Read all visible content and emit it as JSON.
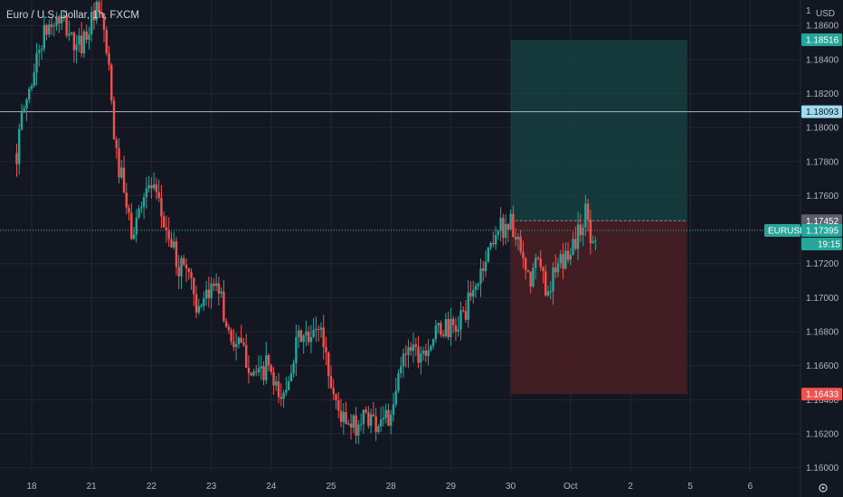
{
  "header": {
    "title": "Euro / U.S. Dollar, 1h, FXCM"
  },
  "colors": {
    "background": "#131722",
    "grid": "#232733",
    "up": "#26a69a",
    "down": "#ef5350",
    "profit_zone": "#16403e",
    "loss_zone": "#4a1f25",
    "axis_text": "#b2b5be"
  },
  "chart_data": {
    "type": "candlestick",
    "symbol": "EURUSD",
    "timeframe": "1h",
    "currency_label": "USD",
    "scale_label": "1",
    "y_ticks": [
      1.186,
      1.184,
      1.182,
      1.18,
      1.178,
      1.176,
      1.174,
      1.172,
      1.17,
      1.168,
      1.166,
      1.164,
      1.162,
      1.16
    ],
    "y_tick_labels": [
      "1.18600",
      "1.18400",
      "1.18200",
      "1.18000",
      "1.17800",
      "1.17600",
      "1.17400",
      "1.17200",
      "1.17000",
      "1.16800",
      "1.16600",
      "1.16400",
      "1.16200",
      "1.16000"
    ],
    "ylim": [
      1.1595,
      1.1875
    ],
    "x_ticks": [
      {
        "label": "18",
        "day": 0
      },
      {
        "label": "21",
        "day": 1
      },
      {
        "label": "22",
        "day": 2
      },
      {
        "label": "23",
        "day": 3
      },
      {
        "label": "24",
        "day": 4
      },
      {
        "label": "25",
        "day": 5
      },
      {
        "label": "28",
        "day": 6
      },
      {
        "label": "29",
        "day": 7
      },
      {
        "label": "30",
        "day": 8
      },
      {
        "label": "Oct",
        "day": 9
      },
      {
        "label": "2",
        "day": 10
      },
      {
        "label": "5",
        "day": 11
      },
      {
        "label": "6",
        "day": 12
      }
    ],
    "price_path": [
      [
        -0.25,
        1.1785
      ],
      [
        -0.15,
        1.1808
      ],
      [
        0.0,
        1.1828
      ],
      [
        0.15,
        1.185
      ],
      [
        0.3,
        1.186
      ],
      [
        0.45,
        1.1863
      ],
      [
        0.6,
        1.1858
      ],
      [
        0.75,
        1.1845
      ],
      [
        0.9,
        1.1855
      ],
      [
        1.0,
        1.1862
      ],
      [
        1.1,
        1.1868
      ],
      [
        1.2,
        1.186
      ],
      [
        1.3,
        1.1828
      ],
      [
        1.4,
        1.1785
      ],
      [
        1.5,
        1.177
      ],
      [
        1.6,
        1.1748
      ],
      [
        1.7,
        1.1735
      ],
      [
        1.85,
        1.1762
      ],
      [
        2.0,
        1.1765
      ],
      [
        2.15,
        1.175
      ],
      [
        2.3,
        1.1735
      ],
      [
        2.45,
        1.1718
      ],
      [
        2.6,
        1.172
      ],
      [
        2.7,
        1.1705
      ],
      [
        2.8,
        1.1688
      ],
      [
        3.0,
        1.1705
      ],
      [
        3.1,
        1.1715
      ],
      [
        3.2,
        1.169
      ],
      [
        3.35,
        1.1675
      ],
      [
        3.5,
        1.167
      ],
      [
        3.65,
        1.166
      ],
      [
        3.8,
        1.1652
      ],
      [
        3.95,
        1.1662
      ],
      [
        4.05,
        1.1645
      ],
      [
        4.2,
        1.164
      ],
      [
        4.35,
        1.1665
      ],
      [
        4.5,
        1.1678
      ],
      [
        4.65,
        1.1673
      ],
      [
        4.8,
        1.1685
      ],
      [
        4.9,
        1.167
      ],
      [
        5.0,
        1.1648
      ],
      [
        5.15,
        1.1632
      ],
      [
        5.3,
        1.1622
      ],
      [
        5.45,
        1.1626
      ],
      [
        5.6,
        1.1632
      ],
      [
        5.75,
        1.1626
      ],
      [
        5.9,
        1.1634
      ],
      [
        6.0,
        1.1625
      ],
      [
        6.15,
        1.1658
      ],
      [
        6.3,
        1.1675
      ],
      [
        6.45,
        1.1668
      ],
      [
        6.6,
        1.1672
      ],
      [
        6.75,
        1.1678
      ],
      [
        6.9,
        1.1683
      ],
      [
        7.05,
        1.168
      ],
      [
        7.2,
        1.169
      ],
      [
        7.35,
        1.17
      ],
      [
        7.5,
        1.1715
      ],
      [
        7.65,
        1.173
      ],
      [
        7.75,
        1.174
      ],
      [
        7.9,
        1.1742
      ],
      [
        8.0,
        1.1745
      ],
      [
        8.1,
        1.1732
      ],
      [
        8.2,
        1.172
      ],
      [
        8.3,
        1.1708
      ],
      [
        8.45,
        1.1722
      ],
      [
        8.6,
        1.1705
      ],
      [
        8.75,
        1.1715
      ],
      [
        8.9,
        1.1722
      ],
      [
        9.0,
        1.173
      ],
      [
        9.1,
        1.1735
      ],
      [
        9.2,
        1.1745
      ],
      [
        9.27,
        1.1752
      ],
      [
        9.35,
        1.173
      ],
      [
        9.42,
        1.174
      ]
    ],
    "current_price": 1.17395,
    "current_price_label": "1.17395",
    "countdown": "19:15",
    "horizontal_levels": [
      {
        "price": 1.18093,
        "label": "1.18093",
        "color": "#b2b5be",
        "tag_color": "#9fdcef"
      }
    ],
    "position": {
      "entry": 1.17452,
      "entry_label": "1.17452",
      "target": 1.18516,
      "target_label": "1.18516",
      "stop": 1.16433,
      "stop_label": "1.16433",
      "start_day": 8.0,
      "end_day": 10.95
    },
    "grid": true,
    "legend": "top-left"
  }
}
